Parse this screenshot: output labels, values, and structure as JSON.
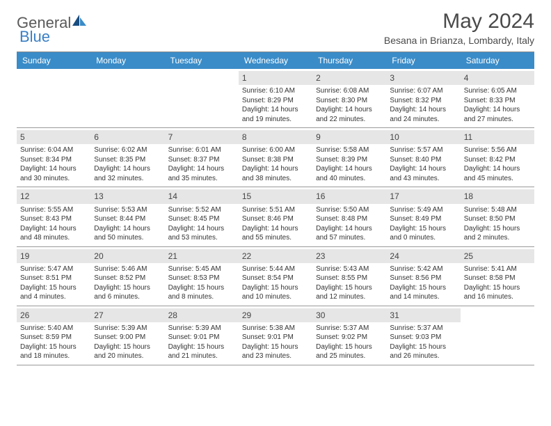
{
  "logo": {
    "part1": "General",
    "part2": "Blue"
  },
  "header": {
    "month": "May 2024",
    "location": "Besana in Brianza, Lombardy, Italy"
  },
  "dayNames": [
    "Sunday",
    "Monday",
    "Tuesday",
    "Wednesday",
    "Thursday",
    "Friday",
    "Saturday"
  ],
  "calendar": {
    "header_bg": "#3a8cc8",
    "header_fg": "#ffffff",
    "band_bg": "#e6e6e6",
    "border": "#999999"
  },
  "weeks": [
    [
      {
        "empty": true
      },
      {
        "empty": true
      },
      {
        "empty": true
      },
      {
        "n": "1",
        "sr": "6:10 AM",
        "ss": "8:29 PM",
        "dl": "14 hours and 19 minutes."
      },
      {
        "n": "2",
        "sr": "6:08 AM",
        "ss": "8:30 PM",
        "dl": "14 hours and 22 minutes."
      },
      {
        "n": "3",
        "sr": "6:07 AM",
        "ss": "8:32 PM",
        "dl": "14 hours and 24 minutes."
      },
      {
        "n": "4",
        "sr": "6:05 AM",
        "ss": "8:33 PM",
        "dl": "14 hours and 27 minutes."
      }
    ],
    [
      {
        "n": "5",
        "sr": "6:04 AM",
        "ss": "8:34 PM",
        "dl": "14 hours and 30 minutes."
      },
      {
        "n": "6",
        "sr": "6:02 AM",
        "ss": "8:35 PM",
        "dl": "14 hours and 32 minutes."
      },
      {
        "n": "7",
        "sr": "6:01 AM",
        "ss": "8:37 PM",
        "dl": "14 hours and 35 minutes."
      },
      {
        "n": "8",
        "sr": "6:00 AM",
        "ss": "8:38 PM",
        "dl": "14 hours and 38 minutes."
      },
      {
        "n": "9",
        "sr": "5:58 AM",
        "ss": "8:39 PM",
        "dl": "14 hours and 40 minutes."
      },
      {
        "n": "10",
        "sr": "5:57 AM",
        "ss": "8:40 PM",
        "dl": "14 hours and 43 minutes."
      },
      {
        "n": "11",
        "sr": "5:56 AM",
        "ss": "8:42 PM",
        "dl": "14 hours and 45 minutes."
      }
    ],
    [
      {
        "n": "12",
        "sr": "5:55 AM",
        "ss": "8:43 PM",
        "dl": "14 hours and 48 minutes."
      },
      {
        "n": "13",
        "sr": "5:53 AM",
        "ss": "8:44 PM",
        "dl": "14 hours and 50 minutes."
      },
      {
        "n": "14",
        "sr": "5:52 AM",
        "ss": "8:45 PM",
        "dl": "14 hours and 53 minutes."
      },
      {
        "n": "15",
        "sr": "5:51 AM",
        "ss": "8:46 PM",
        "dl": "14 hours and 55 minutes."
      },
      {
        "n": "16",
        "sr": "5:50 AM",
        "ss": "8:48 PM",
        "dl": "14 hours and 57 minutes."
      },
      {
        "n": "17",
        "sr": "5:49 AM",
        "ss": "8:49 PM",
        "dl": "15 hours and 0 minutes."
      },
      {
        "n": "18",
        "sr": "5:48 AM",
        "ss": "8:50 PM",
        "dl": "15 hours and 2 minutes."
      }
    ],
    [
      {
        "n": "19",
        "sr": "5:47 AM",
        "ss": "8:51 PM",
        "dl": "15 hours and 4 minutes."
      },
      {
        "n": "20",
        "sr": "5:46 AM",
        "ss": "8:52 PM",
        "dl": "15 hours and 6 minutes."
      },
      {
        "n": "21",
        "sr": "5:45 AM",
        "ss": "8:53 PM",
        "dl": "15 hours and 8 minutes."
      },
      {
        "n": "22",
        "sr": "5:44 AM",
        "ss": "8:54 PM",
        "dl": "15 hours and 10 minutes."
      },
      {
        "n": "23",
        "sr": "5:43 AM",
        "ss": "8:55 PM",
        "dl": "15 hours and 12 minutes."
      },
      {
        "n": "24",
        "sr": "5:42 AM",
        "ss": "8:56 PM",
        "dl": "15 hours and 14 minutes."
      },
      {
        "n": "25",
        "sr": "5:41 AM",
        "ss": "8:58 PM",
        "dl": "15 hours and 16 minutes."
      }
    ],
    [
      {
        "n": "26",
        "sr": "5:40 AM",
        "ss": "8:59 PM",
        "dl": "15 hours and 18 minutes."
      },
      {
        "n": "27",
        "sr": "5:39 AM",
        "ss": "9:00 PM",
        "dl": "15 hours and 20 minutes."
      },
      {
        "n": "28",
        "sr": "5:39 AM",
        "ss": "9:01 PM",
        "dl": "15 hours and 21 minutes."
      },
      {
        "n": "29",
        "sr": "5:38 AM",
        "ss": "9:01 PM",
        "dl": "15 hours and 23 minutes."
      },
      {
        "n": "30",
        "sr": "5:37 AM",
        "ss": "9:02 PM",
        "dl": "15 hours and 25 minutes."
      },
      {
        "n": "31",
        "sr": "5:37 AM",
        "ss": "9:03 PM",
        "dl": "15 hours and 26 minutes."
      },
      {
        "empty": true
      }
    ]
  ],
  "labels": {
    "sunrise": "Sunrise: ",
    "sunset": "Sunset: ",
    "daylight": "Daylight: "
  }
}
